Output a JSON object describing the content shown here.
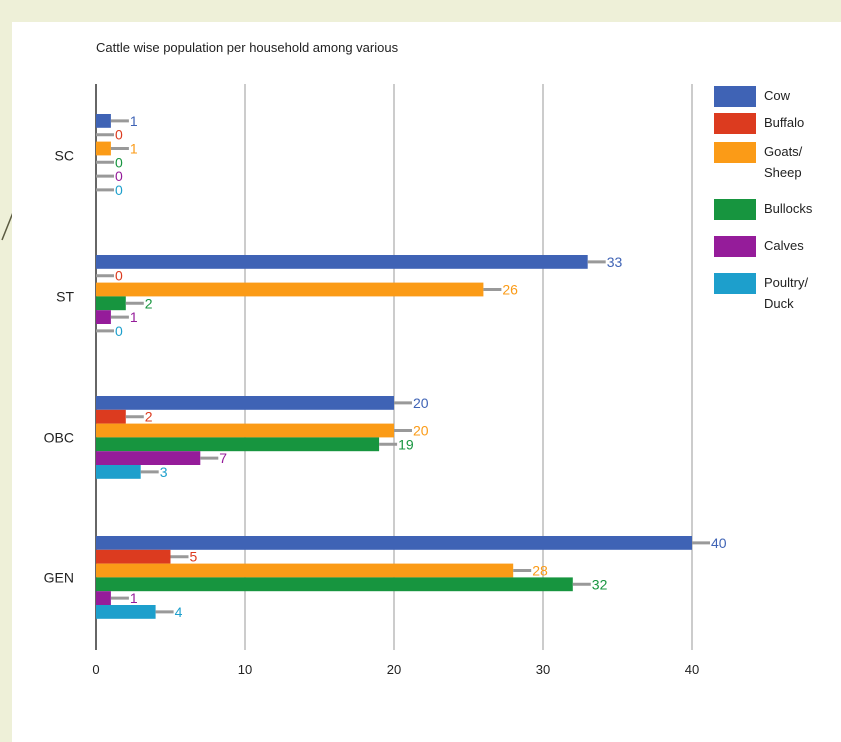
{
  "chart_data": {
    "type": "bar",
    "orientation": "horizontal",
    "title": "Cattle wise population per household among various",
    "categories": [
      "SC",
      "ST",
      "OBC",
      "GEN"
    ],
    "series": [
      {
        "name": "Cow",
        "color": "#3f63b5",
        "values": [
          1,
          33,
          20,
          40
        ]
      },
      {
        "name": "Buffalo",
        "color": "#dc3b1f",
        "values": [
          0,
          0,
          2,
          5
        ]
      },
      {
        "name": "Goats/ Sheep",
        "color": "#fb9b17",
        "values": [
          1,
          26,
          20,
          28
        ]
      },
      {
        "name": "Bullocks",
        "color": "#17953f",
        "values": [
          0,
          2,
          19,
          32
        ]
      },
      {
        "name": "Calves",
        "color": "#951c9a",
        "values": [
          0,
          1,
          7,
          1
        ]
      },
      {
        "name": "Poultry/ Duck",
        "color": "#1d9fcc",
        "values": [
          0,
          0,
          3,
          4
        ]
      }
    ],
    "xlim": [
      0,
      40
    ],
    "xticks": [
      "0",
      "10",
      "20",
      "30",
      "40"
    ],
    "grid": true,
    "legend": "right"
  }
}
